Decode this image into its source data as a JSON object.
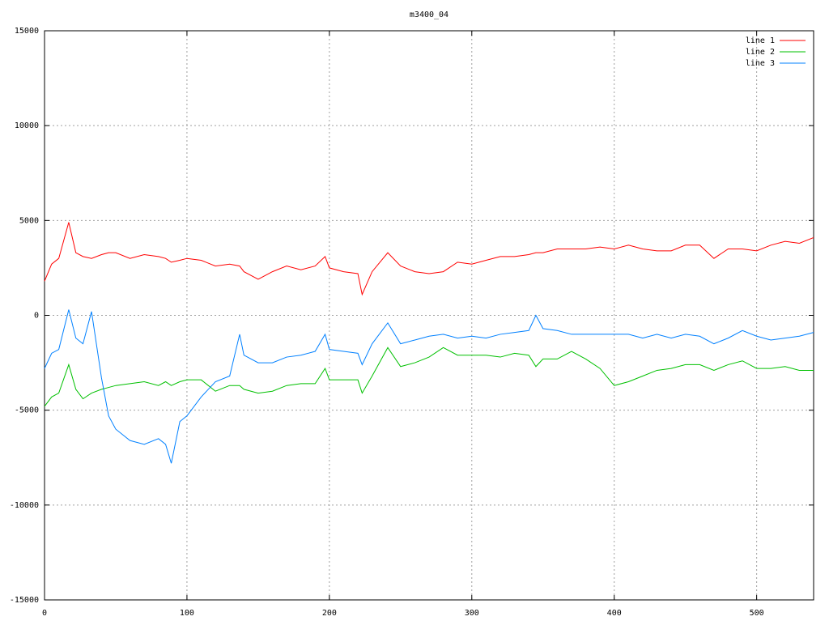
{
  "chart_data": {
    "type": "line",
    "title": "m3400_04",
    "x": [
      0,
      5,
      10,
      17,
      22,
      27,
      33,
      40,
      45,
      50,
      60,
      70,
      80,
      85,
      89,
      95,
      100,
      110,
      120,
      130,
      137,
      140,
      150,
      160,
      170,
      180,
      190,
      197,
      200,
      210,
      220,
      223,
      230,
      241,
      250,
      260,
      270,
      280,
      290,
      300,
      310,
      320,
      330,
      340,
      345,
      350,
      360,
      370,
      380,
      390,
      400,
      410,
      420,
      430,
      440,
      450,
      460,
      470,
      480,
      490,
      500,
      510,
      520,
      530,
      540
    ],
    "series": [
      {
        "name": "line 1",
        "color": "#ff0000",
        "values": [
          1800,
          2700,
          3000,
          4900,
          3300,
          3100,
          3000,
          3200,
          3300,
          3300,
          3000,
          3200,
          3100,
          3000,
          2800,
          2900,
          3000,
          2900,
          2600,
          2700,
          2600,
          2300,
          1900,
          2300,
          2600,
          2400,
          2600,
          3100,
          2500,
          2300,
          2200,
          1100,
          2300,
          3300,
          2600,
          2300,
          2200,
          2300,
          2800,
          2700,
          2900,
          3100,
          3100,
          3200,
          3300,
          3300,
          3500,
          3500,
          3500,
          3600,
          3500,
          3700,
          3500,
          3400,
          3400,
          3700,
          3700,
          3000,
          3500,
          3500,
          3400,
          3700,
          3900,
          3800,
          4100
        ]
      },
      {
        "name": "line 2",
        "color": "#00c000",
        "values": [
          -4800,
          -4300,
          -4100,
          -2600,
          -3900,
          -4400,
          -4100,
          -3900,
          -3800,
          -3700,
          -3600,
          -3500,
          -3700,
          -3500,
          -3700,
          -3500,
          -3400,
          -3400,
          -4000,
          -3700,
          -3700,
          -3900,
          -4100,
          -4000,
          -3700,
          -3600,
          -3600,
          -2800,
          -3400,
          -3400,
          -3400,
          -4100,
          -3200,
          -1700,
          -2700,
          -2500,
          -2200,
          -1700,
          -2100,
          -2100,
          -2100,
          -2200,
          -2000,
          -2100,
          -2700,
          -2300,
          -2300,
          -1900,
          -2300,
          -2800,
          -3700,
          -3500,
          -3200,
          -2900,
          -2800,
          -2600,
          -2600,
          -2900,
          -2600,
          -2400,
          -2800,
          -2800,
          -2700,
          -2900,
          -2900
        ]
      },
      {
        "name": "line 3",
        "color": "#0080ff",
        "values": [
          -2800,
          -2000,
          -1800,
          300,
          -1200,
          -1500,
          200,
          -3300,
          -5300,
          -6000,
          -6600,
          -6800,
          -6500,
          -6800,
          -7800,
          -5600,
          -5300,
          -4300,
          -3500,
          -3200,
          -1000,
          -2100,
          -2500,
          -2500,
          -2200,
          -2100,
          -1900,
          -1000,
          -1800,
          -1900,
          -2000,
          -2600,
          -1500,
          -400,
          -1500,
          -1300,
          -1100,
          -1000,
          -1200,
          -1100,
          -1200,
          -1000,
          -900,
          -800,
          0,
          -700,
          -800,
          -1000,
          -1000,
          -1000,
          -1000,
          -1000,
          -1200,
          -1000,
          -1200,
          -1000,
          -1100,
          -1500,
          -1200,
          -800,
          -1100,
          -1300,
          -1200,
          -1100,
          -900
        ]
      }
    ],
    "xlim": [
      0,
      540
    ],
    "xticks": [
      0,
      100,
      200,
      300,
      400,
      500
    ],
    "ylim": [
      -15000,
      15000
    ],
    "yticks": [
      -15000,
      -10000,
      -5000,
      0,
      5000,
      10000,
      15000
    ],
    "grid": true,
    "legend": "top-right"
  }
}
